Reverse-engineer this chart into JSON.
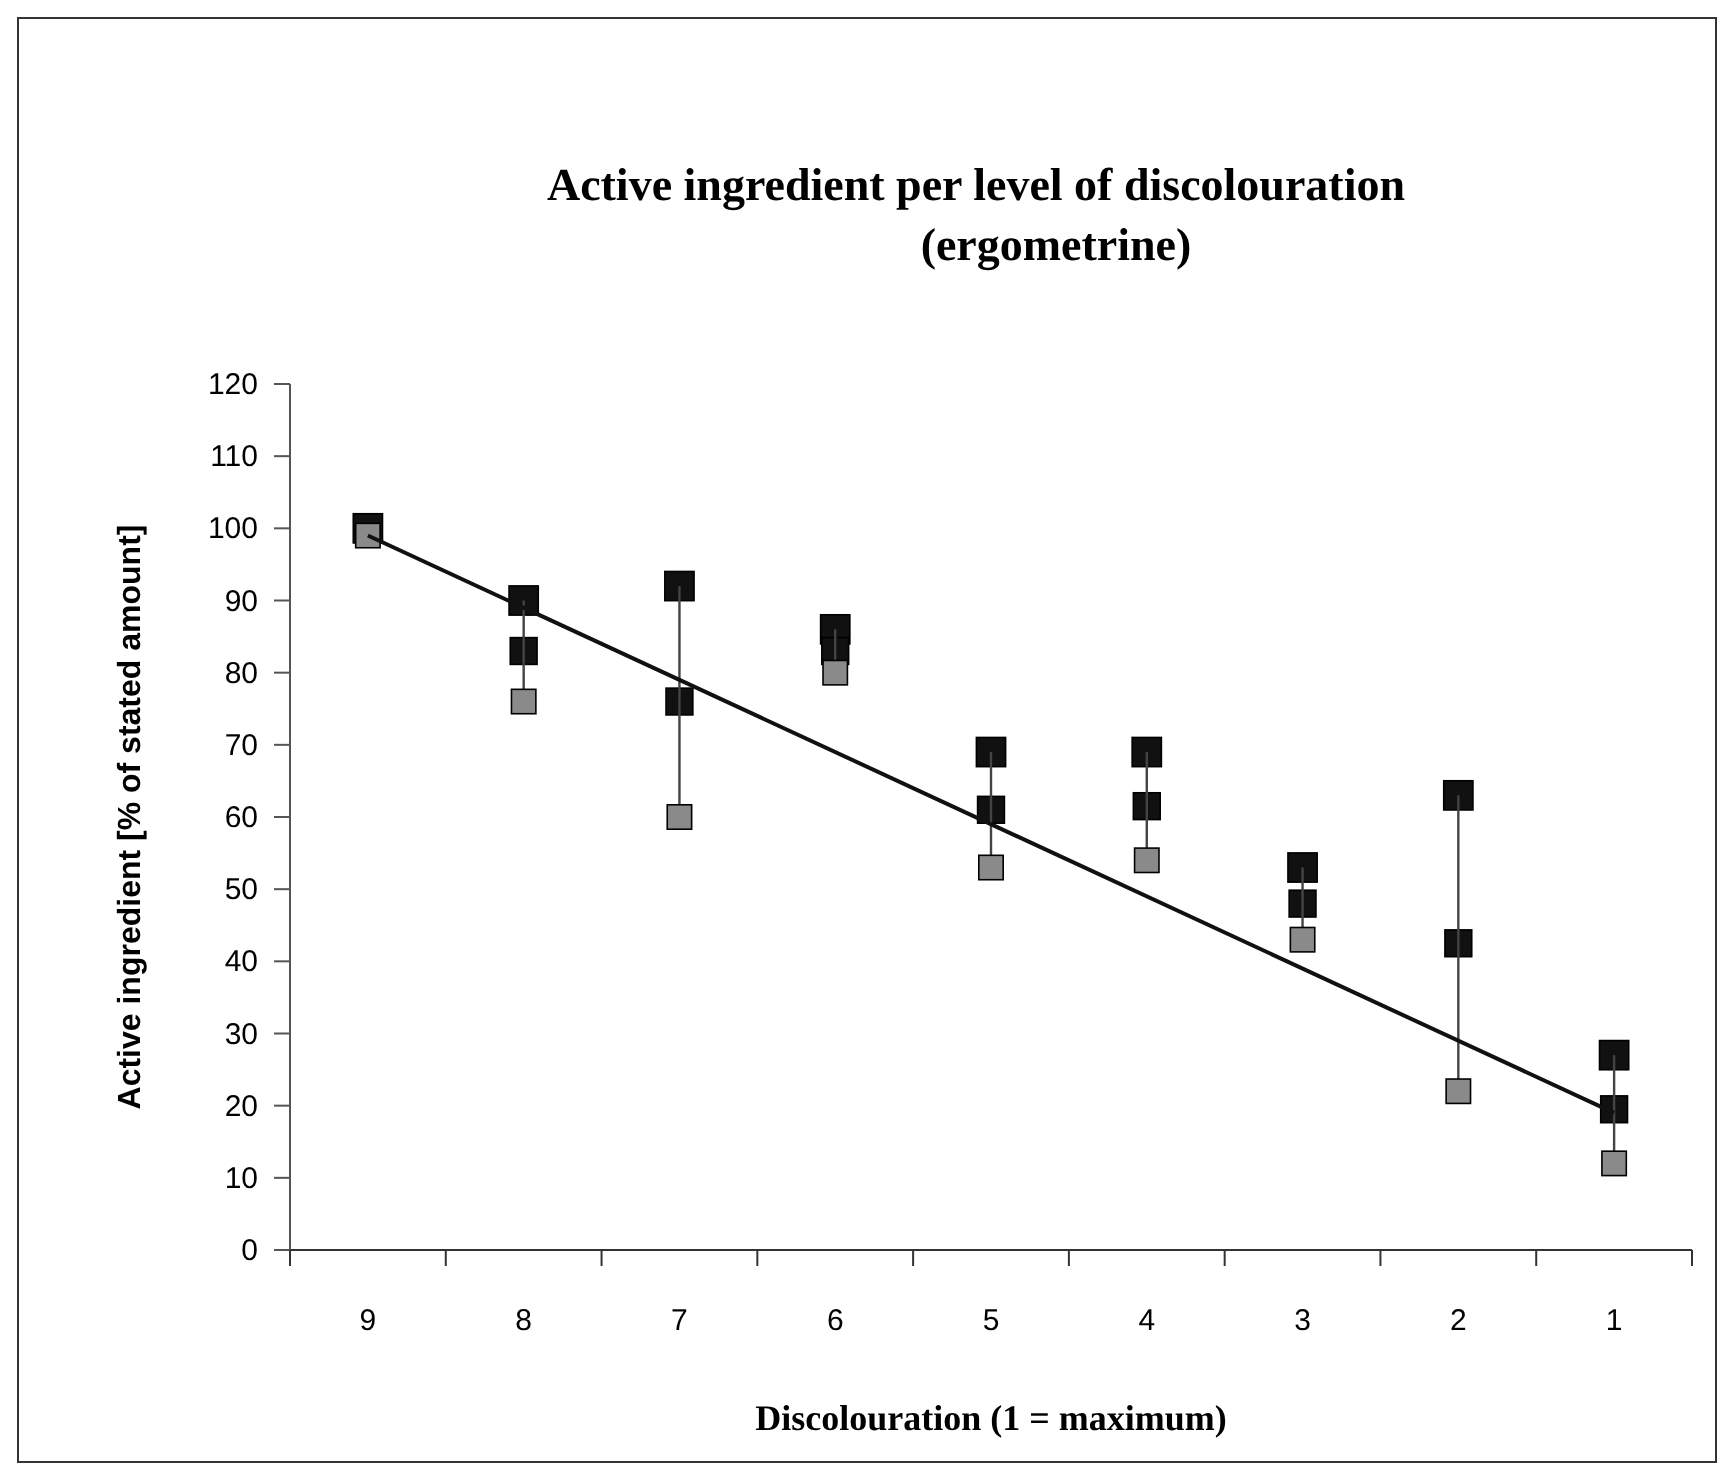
{
  "chart_data": {
    "type": "scatter",
    "title": "Active ingredient per level of discolouration\n(ergometrine)",
    "xlabel": "Discolouration (1 = maximum)",
    "ylabel": "Active ingredient [% of stated amount]",
    "categories": [
      "9",
      "8",
      "7",
      "6",
      "5",
      "4",
      "3",
      "2",
      "1"
    ],
    "ylim": [
      0,
      120
    ],
    "yticks": [
      0,
      10,
      20,
      30,
      40,
      50,
      60,
      70,
      80,
      90,
      100,
      110,
      120
    ],
    "grid": false,
    "marker": "square",
    "series": [
      {
        "color": "#111111",
        "values": [
          100,
          90,
          92,
          86,
          69,
          69,
          53,
          63,
          27
        ]
      },
      {
        "color": "#111111",
        "values": [
          null,
          83,
          76,
          83,
          61,
          61.5,
          48,
          42.5,
          19.5
        ],
        "errors": [
          null,
          [
            7,
            7
          ],
          [
            16,
            16
          ],
          [
            3,
            3
          ],
          [
            8,
            8
          ],
          [
            7.5,
            7.5
          ],
          [
            5,
            5
          ],
          [
            20.5,
            20.5
          ],
          [
            7.5,
            7.5
          ]
        ]
      },
      {
        "color": "#8a8a8a",
        "values": [
          99,
          76,
          60,
          80,
          53,
          54,
          43,
          22,
          12
        ]
      },
      {
        "type": "line",
        "color": "#111111",
        "marker": "none",
        "line_style": "solid",
        "x": [
          "9",
          "1"
        ],
        "values": [
          99,
          19
        ]
      }
    ]
  }
}
